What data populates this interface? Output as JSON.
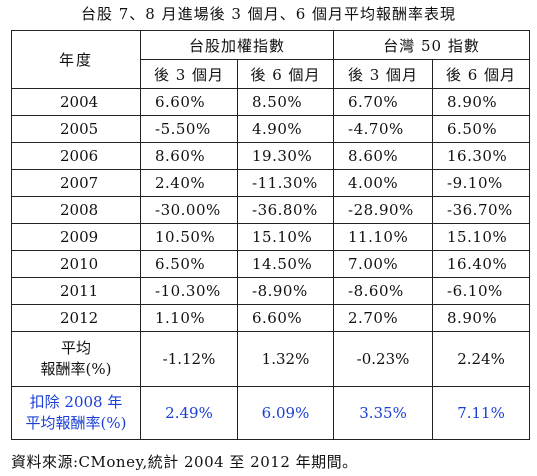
{
  "title": "台股 7、8 月進場後 3 個月、6 個月平均報酬率表現",
  "table": {
    "year_header": "年度",
    "groups": [
      "台股加權指數",
      "台灣 50 指數"
    ],
    "sub_headers": [
      "後 3 個月",
      "後 6 個月",
      "後 3 個月",
      "後 6 個月"
    ],
    "rows": [
      {
        "year": "2004",
        "values": [
          "6.60%",
          "8.50%",
          "6.70%",
          "8.90%"
        ]
      },
      {
        "year": "2005",
        "values": [
          "-5.50%",
          "4.90%",
          "-4.70%",
          "6.50%"
        ]
      },
      {
        "year": "2006",
        "values": [
          "8.60%",
          "19.30%",
          "8.60%",
          "16.30%"
        ]
      },
      {
        "year": "2007",
        "values": [
          "2.40%",
          "-11.30%",
          "4.00%",
          "-9.10%"
        ]
      },
      {
        "year": "2008",
        "values": [
          "-30.00%",
          "-36.80%",
          "-28.90%",
          "-36.70%"
        ]
      },
      {
        "year": "2009",
        "values": [
          "10.50%",
          "15.10%",
          "11.10%",
          "15.10%"
        ]
      },
      {
        "year": "2010",
        "values": [
          "6.50%",
          "14.50%",
          "7.00%",
          "16.40%"
        ]
      },
      {
        "year": "2011",
        "values": [
          "-10.30%",
          "-8.90%",
          "-8.60%",
          "-6.10%"
        ]
      },
      {
        "year": "2012",
        "values": [
          "1.10%",
          "6.60%",
          "2.70%",
          "8.90%"
        ]
      }
    ],
    "average": {
      "label_line1": "平均",
      "label_line2": "報酬率(%)",
      "values": [
        "-1.12%",
        "1.32%",
        "-0.23%",
        "2.24%"
      ]
    },
    "excluding_2008": {
      "label_line1": "扣除 2008 年",
      "label_line2": "平均報酬率(%)",
      "values": [
        "2.49%",
        "6.09%",
        "3.35%",
        "7.11%"
      ],
      "color": "#1a3fd6"
    }
  },
  "source": "資料來源:CMoney,統計 2004 至 2012 年期間。"
}
